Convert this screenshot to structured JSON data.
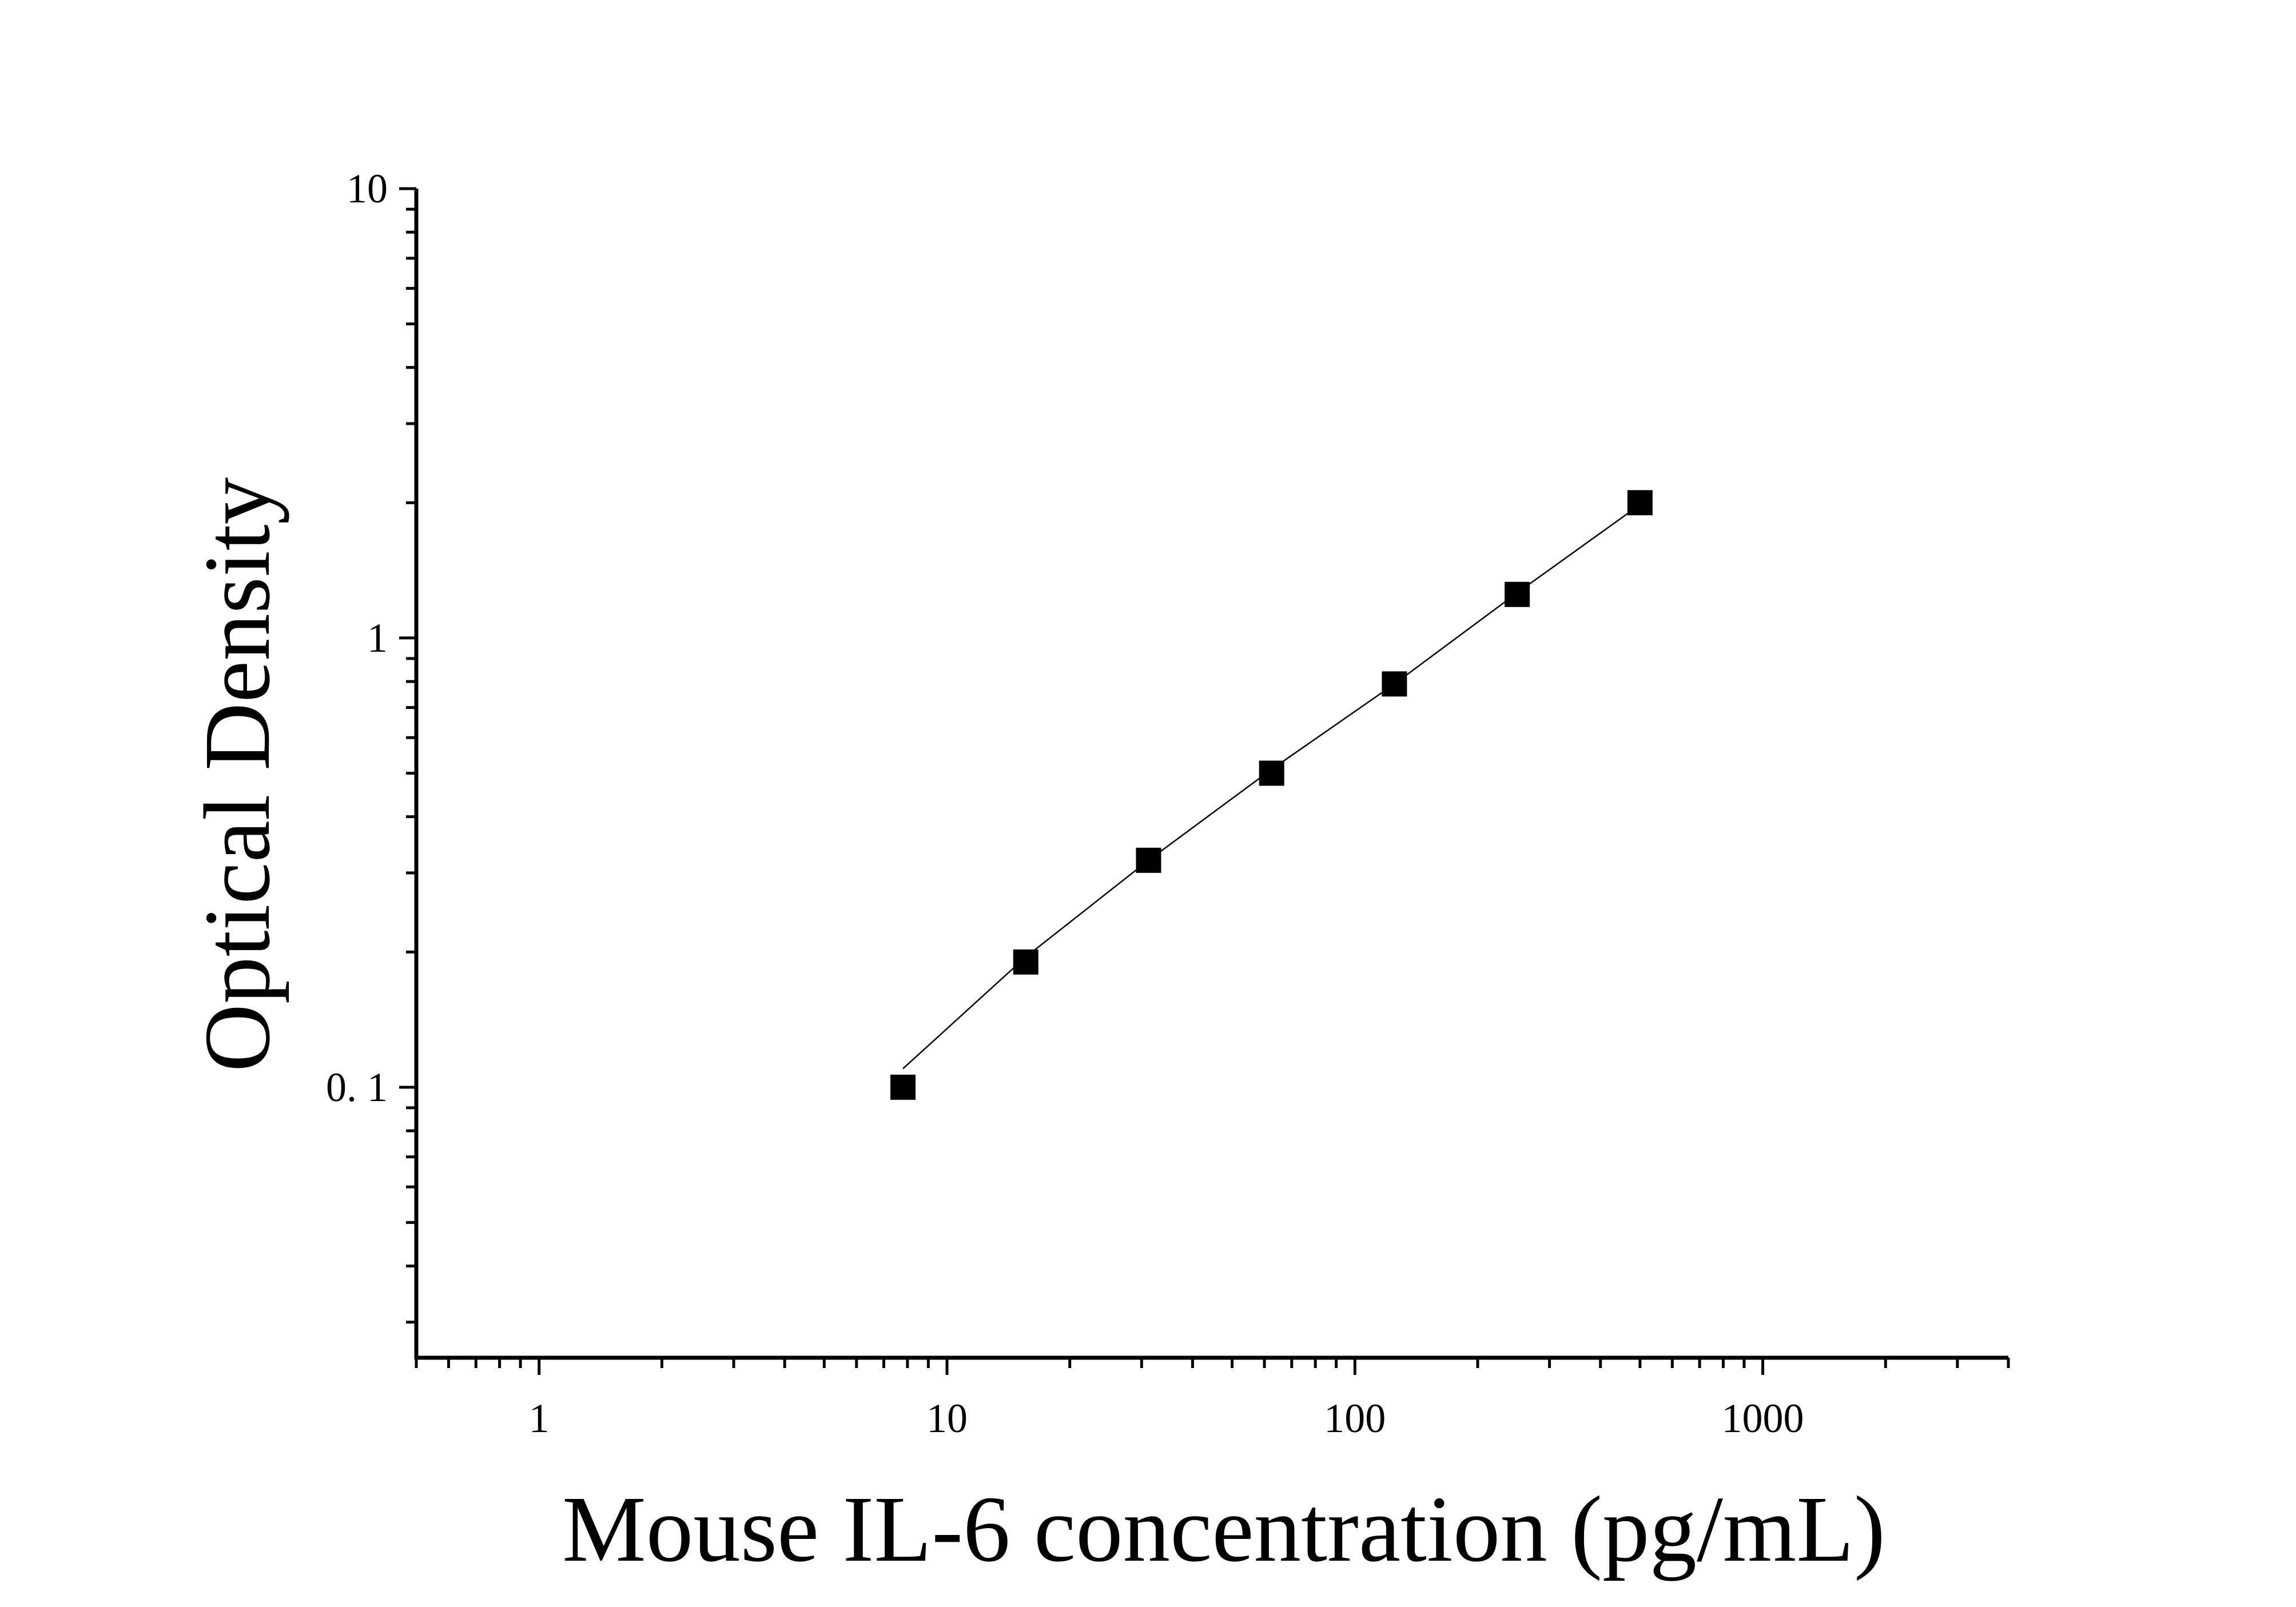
{
  "chart_data": {
    "type": "scatter",
    "title": "",
    "xlabel": "Mouse IL-6 concentration (pg/mL)",
    "ylabel": "Optical Density",
    "x_scale": "log",
    "y_scale": "log",
    "xlim": [
      0.5,
      4000
    ],
    "ylim": [
      0.025,
      10
    ],
    "x_ticks": [
      {
        "value": 1,
        "label": "1"
      },
      {
        "value": 10,
        "label": "10"
      },
      {
        "value": 100,
        "label": "100"
      },
      {
        "value": 1000,
        "label": "1000"
      }
    ],
    "y_ticks": [
      {
        "value": 0.1,
        "label": "0. 1"
      },
      {
        "value": 1,
        "label": "1"
      },
      {
        "value": 10,
        "label": "10"
      }
    ],
    "grid": false,
    "legend": "none",
    "series": [
      {
        "marker": "square",
        "color": "#000000",
        "x": [
          7.8,
          15.6,
          31.2,
          62.5,
          125,
          250,
          500
        ],
        "y": [
          0.1,
          0.19,
          0.32,
          0.5,
          0.79,
          1.25,
          2.0
        ]
      }
    ],
    "fit_line": {
      "color": "#000000",
      "x": [
        7.8,
        15.6,
        31.2,
        62.5,
        125,
        250,
        500
      ],
      "y": [
        0.11,
        0.195,
        0.32,
        0.51,
        0.79,
        1.26,
        1.98
      ]
    }
  }
}
